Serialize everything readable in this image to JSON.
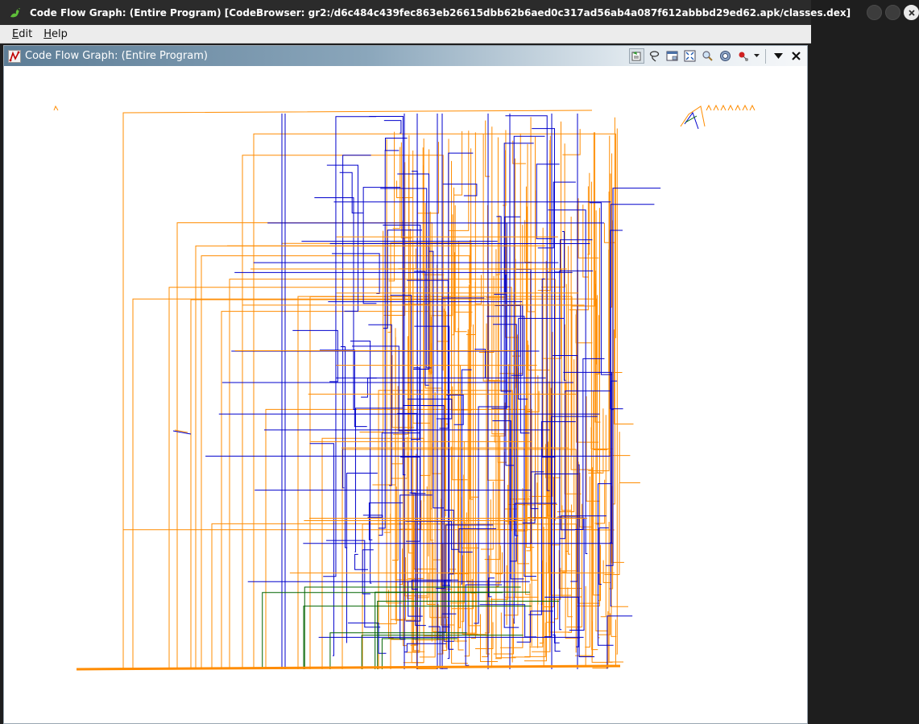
{
  "window": {
    "title": "Code Flow Graph: (Entire Program) [CodeBrowser: gr2:/d6c484c439fec863eb26615dbb62b6aed0c317ad56ab4a087f612abbbd29ed62.apk/classes.dex]",
    "app_icon": "ghidra-dragon-icon"
  },
  "menu": {
    "items": [
      {
        "mnemonic": "E",
        "rest": "dit"
      },
      {
        "mnemonic": "H",
        "rest": "elp"
      }
    ]
  },
  "panel": {
    "title": "Code Flow Graph: (Entire Program)",
    "icon": "flow-graph-icon",
    "toolbar": [
      "relayout-graph-icon",
      "lasso-icon",
      "satellite-view-icon",
      "fit-to-window-icon",
      "zoom-icon",
      "reset-graph-icon",
      "graph-type-icon",
      "dropdown-arrow-icon",
      "panel-menu-icon",
      "close-icon"
    ]
  },
  "graph": {
    "edge_colors": {
      "fallthrough": "#ff8c00",
      "jump": "#0000cc",
      "conditional": "#006400"
    }
  }
}
